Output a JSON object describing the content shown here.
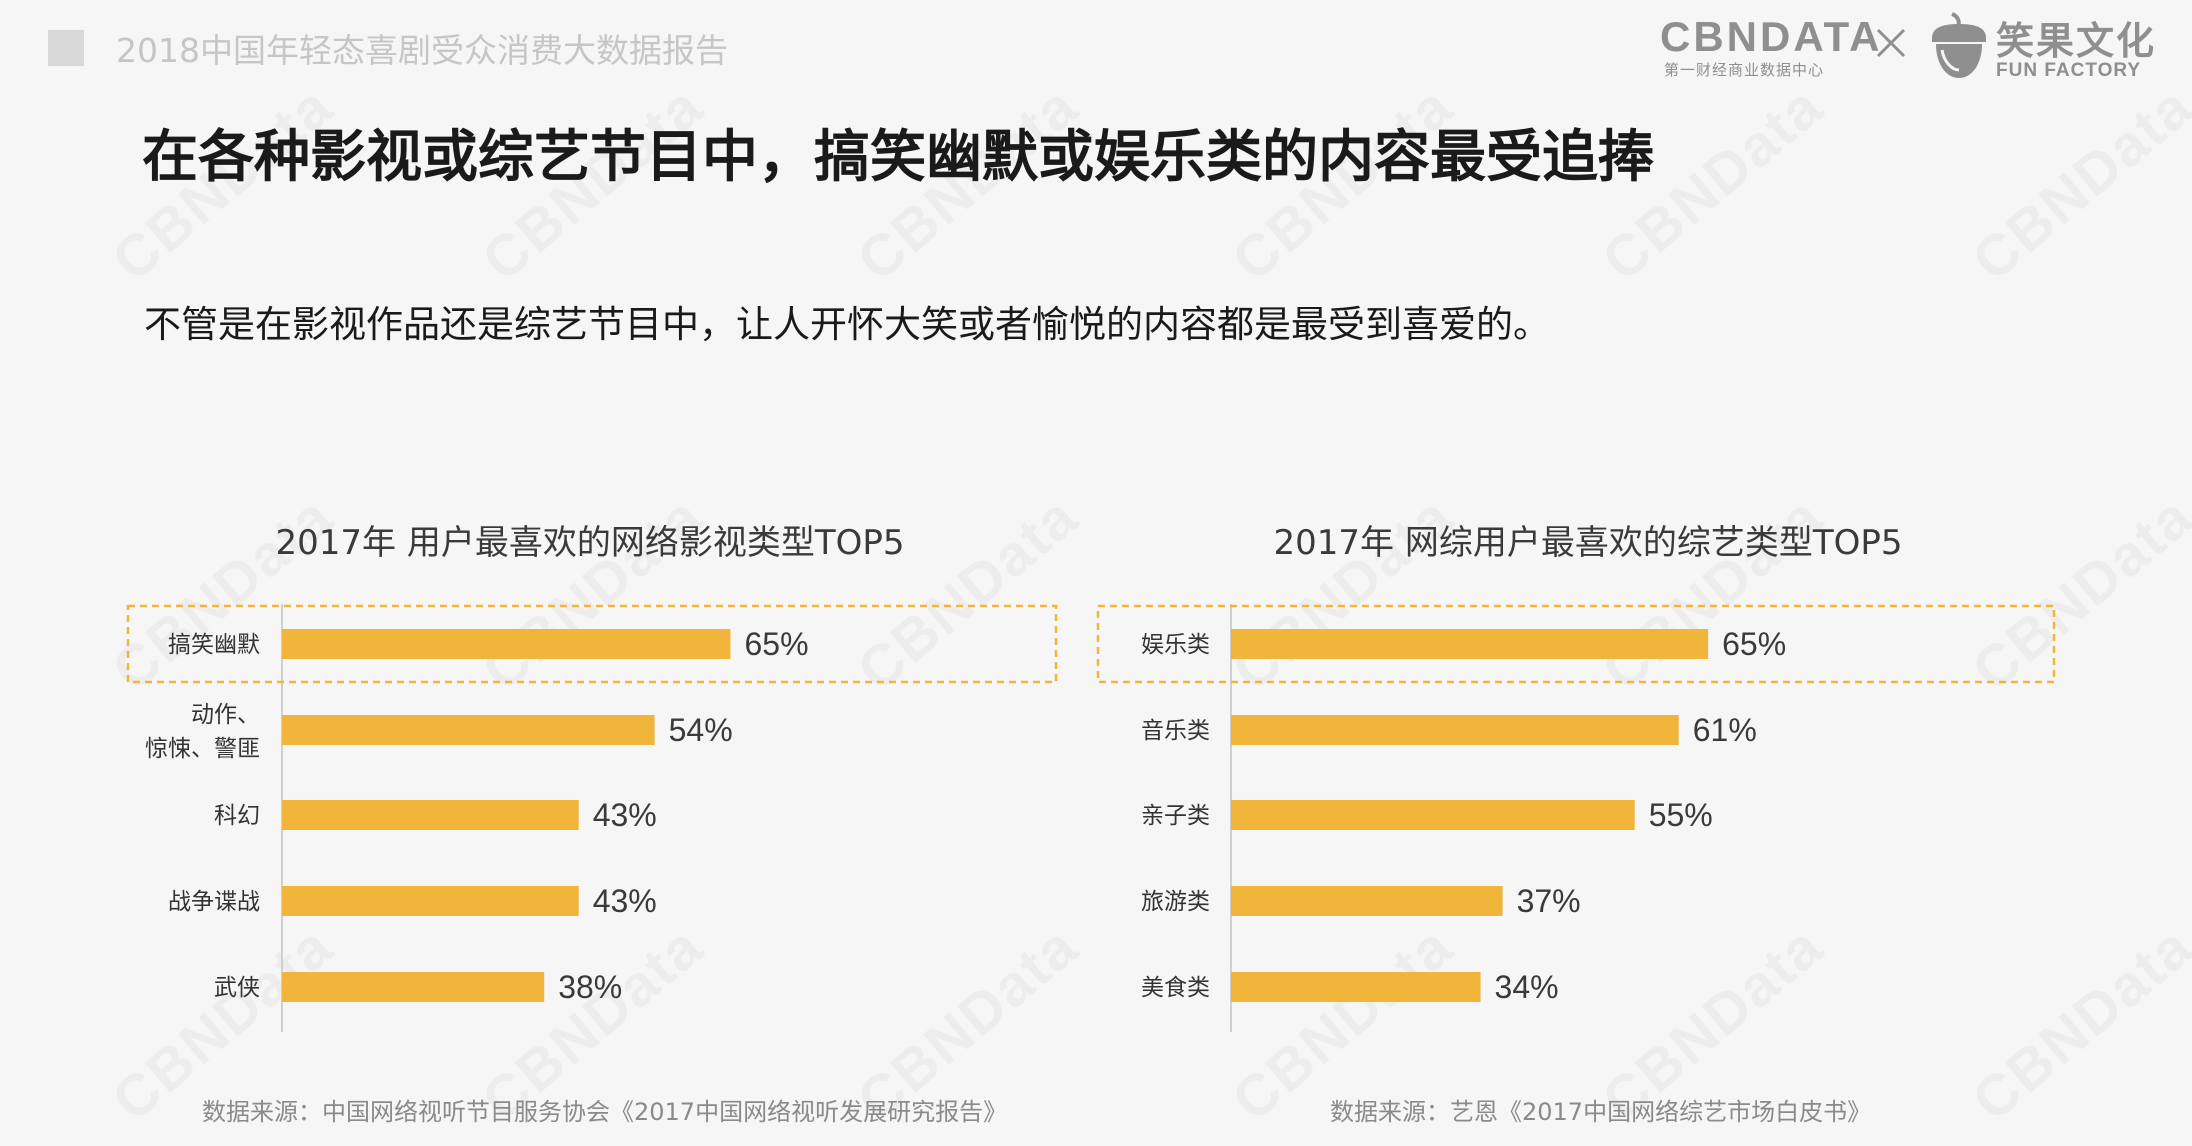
{
  "header": {
    "report_title": "2018中国年轻态喜剧受众消费大数据报告",
    "logo_cbn_word": "CBNDATA",
    "logo_cbn_sub": "第一财经商业数据中心",
    "logo_fun_cn": "笑果文化",
    "logo_fun_en": "FUN FACTORY",
    "x_icon": "close-cross-icon",
    "acorn_icon": "acorn-logo-icon"
  },
  "headline": "在各种影视或综艺节目中，搞笑幽默或娱乐类的内容最受追捧",
  "subline": "不管是在影视作品还是综艺节目中，让人开怀大笑或者愉悦的内容都是最受到喜爱的。",
  "watermark": "CBNData",
  "colors": {
    "bar": "#F0B53A",
    "highlight_border": "#F0B53A",
    "axis": "#cfcfcf"
  },
  "chart_data": [
    {
      "type": "bar",
      "orientation": "horizontal",
      "title": "2017年 用户最喜欢的网络影视类型TOP5",
      "categories": [
        "搞笑幽默",
        "动作、\n惊悚、警匪",
        "科幻",
        "战争谍战",
        "武侠"
      ],
      "values": [
        65,
        54,
        43,
        43,
        38
      ],
      "value_labels": [
        "65%",
        "54%",
        "43%",
        "43%",
        "38%"
      ],
      "unit": "%",
      "highlight_index": 0,
      "source": "数据来源：中国网络视听节目服务协会《2017中国网络视听发展研究报告》"
    },
    {
      "type": "bar",
      "orientation": "horizontal",
      "title": "2017年 网综用户最喜欢的综艺类型TOP5",
      "categories": [
        "娱乐类",
        "音乐类",
        "亲子类",
        "旅游类",
        "美食类"
      ],
      "values": [
        65,
        61,
        55,
        37,
        34
      ],
      "value_labels": [
        "65%",
        "61%",
        "55%",
        "37%",
        "34%"
      ],
      "unit": "%",
      "highlight_index": 0,
      "source": "数据来源：艺恩《2017中国网络综艺市场白皮书》"
    }
  ]
}
